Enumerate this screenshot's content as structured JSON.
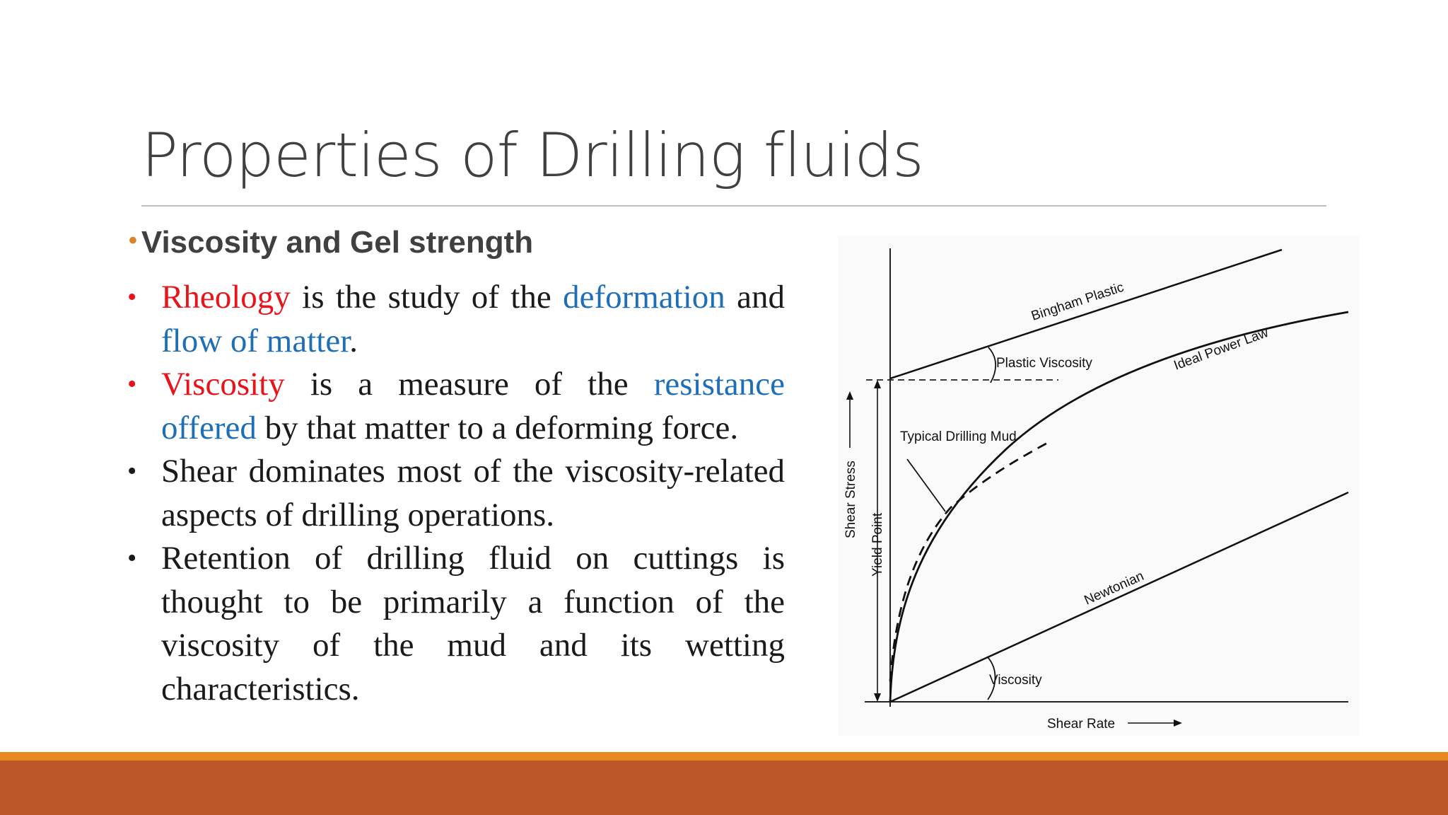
{
  "slide": {
    "title": "Properties of Drilling fluids",
    "subheading": "Viscosity and Gel strength",
    "bullets": [
      {
        "parts": [
          "Rheology",
          " is the study of the ",
          "deformation",
          " and ",
          "flow of matter",
          "."
        ]
      },
      {
        "parts": [
          "Viscosity",
          " is a measure of the ",
          "resistance offered",
          " by that matter to a deforming force."
        ]
      },
      {
        "parts": [
          "Shear dominates most of the viscosity-related aspects of drilling operations."
        ]
      },
      {
        "parts": [
          "Retention of drilling fluid on cuttings is thought to be primarily a function of the viscosity of the mud and its wetting characteristics."
        ]
      }
    ],
    "bullet_glyph": "•"
  },
  "figure": {
    "labels": {
      "bingham": "Bingham Plastic",
      "plastic_viscosity": "Plastic Viscosity",
      "ideal_power_law": "Ideal Power Law",
      "typical_mud": "Typical Drilling Mud",
      "newtonian": "Newtonian",
      "viscosity": "Viscosity",
      "shear_rate": "Shear Rate",
      "shear_stress": "Shear Stress",
      "yield_point": "Yield Point"
    }
  },
  "theme": {
    "accent_orange": "#e8891f",
    "accent_rust": "#bc5729",
    "term_red": "#e8141b",
    "term_blue": "#1f6fb7"
  }
}
